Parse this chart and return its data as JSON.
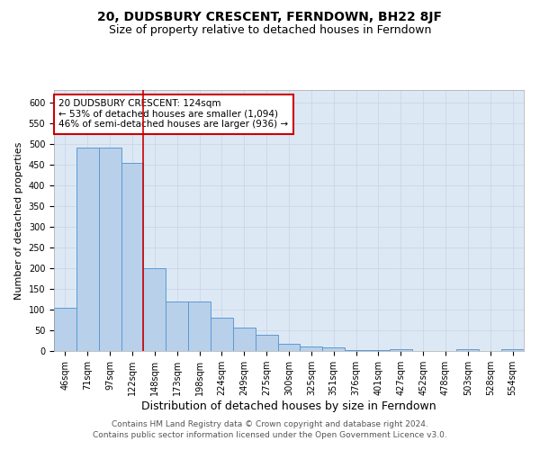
{
  "title": "20, DUDSBURY CRESCENT, FERNDOWN, BH22 8JF",
  "subtitle": "Size of property relative to detached houses in Ferndown",
  "xlabel": "Distribution of detached houses by size in Ferndown",
  "ylabel": "Number of detached properties",
  "categories": [
    "46sqm",
    "71sqm",
    "97sqm",
    "122sqm",
    "148sqm",
    "173sqm",
    "198sqm",
    "224sqm",
    "249sqm",
    "275sqm",
    "300sqm",
    "325sqm",
    "351sqm",
    "376sqm",
    "401sqm",
    "427sqm",
    "452sqm",
    "478sqm",
    "503sqm",
    "528sqm",
    "554sqm"
  ],
  "values": [
    105,
    490,
    490,
    455,
    200,
    120,
    120,
    80,
    57,
    40,
    17,
    10,
    8,
    2,
    2,
    4,
    1,
    0,
    4,
    0,
    5
  ],
  "bar_color": "#b8d0ea",
  "bar_edge_color": "#5b9bd5",
  "red_line_x": 3.5,
  "red_line_color": "#cc0000",
  "annotation_text": "20 DUDSBURY CRESCENT: 124sqm\n← 53% of detached houses are smaller (1,094)\n46% of semi-detached houses are larger (936) →",
  "annotation_box_color": "#ffffff",
  "annotation_box_edge_color": "#cc0000",
  "ylim": [
    0,
    630
  ],
  "yticks": [
    0,
    50,
    100,
    150,
    200,
    250,
    300,
    350,
    400,
    450,
    500,
    550,
    600
  ],
  "grid_color": "#ccd6e8",
  "background_color": "#dde8f5",
  "footer_text": "Contains HM Land Registry data © Crown copyright and database right 2024.\nContains public sector information licensed under the Open Government Licence v3.0.",
  "title_fontsize": 10,
  "subtitle_fontsize": 9,
  "xlabel_fontsize": 9,
  "ylabel_fontsize": 8,
  "tick_fontsize": 7,
  "annotation_fontsize": 7.5,
  "footer_fontsize": 6.5
}
